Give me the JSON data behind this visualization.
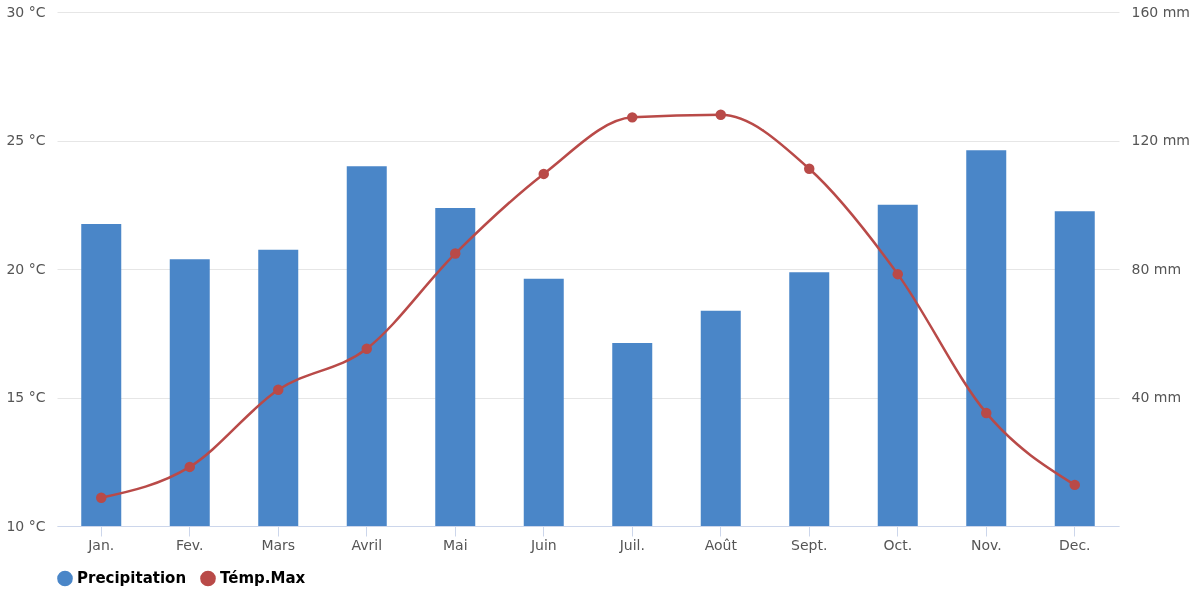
{
  "chart_data": {
    "type": "bar",
    "categories": [
      "Jan.",
      "Fev.",
      "Mars",
      "Avril",
      "Mai",
      "Juin",
      "Juil.",
      "Août",
      "Sept.",
      "Oct.",
      "Nov.",
      "Dec."
    ],
    "series": [
      {
        "name": "Precipitation",
        "axis": "y2",
        "color": "#4a86c8",
        "values": [
          94,
          83,
          86,
          112,
          99,
          77,
          57,
          67,
          79,
          100,
          117,
          98
        ]
      },
      {
        "name": "Témp.Max",
        "type": "line",
        "color": "#b94a48",
        "values": [
          11.1,
          12.3,
          15.3,
          16.9,
          20.6,
          23.7,
          25.9,
          26.0,
          23.9,
          19.8,
          14.4,
          11.6
        ]
      }
    ],
    "ylim": [
      10,
      30
    ],
    "yticks": [
      {
        "value": 10,
        "label": "10 °C"
      },
      {
        "value": 15,
        "label": "15 °C"
      },
      {
        "value": 20,
        "label": "20 °C"
      },
      {
        "value": 25,
        "label": "25 °C"
      },
      {
        "value": 30,
        "label": "30 °C"
      }
    ],
    "y2lim": [
      0,
      160
    ],
    "y2ticks": [
      {
        "value": 40,
        "label": "40 mm"
      },
      {
        "value": 80,
        "label": "80 mm"
      },
      {
        "value": 120,
        "label": "120 mm"
      },
      {
        "value": 160,
        "label": "160 mm"
      }
    ],
    "grid": "y",
    "legend": "bottom",
    "marker": "circle",
    "line_style": "solid"
  }
}
